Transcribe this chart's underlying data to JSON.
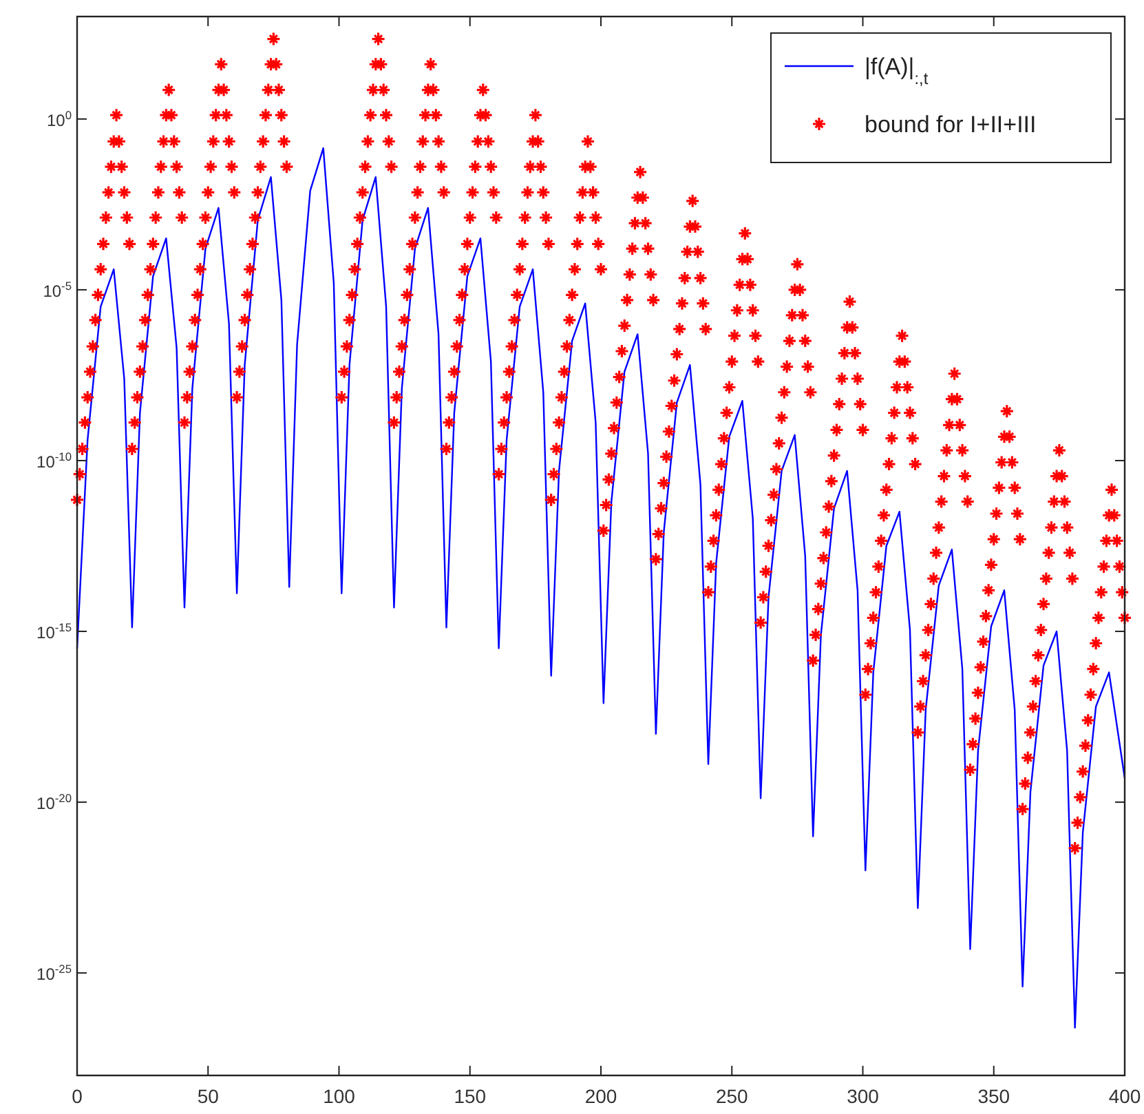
{
  "chart_data": {
    "type": "line",
    "log": "y",
    "legend": "top right",
    "xlim": [
      0,
      400
    ],
    "ylim": [
      1e-28,
      1000
    ],
    "xticks": [
      0,
      50,
      100,
      150,
      200,
      250,
      300,
      350,
      400
    ],
    "yticks": [
      {
        "value": 1,
        "label": "10$^{0}$"
      },
      {
        "value": 1e-05,
        "label": "10$^{-5}$"
      },
      {
        "value": 1e-10,
        "label": "10$^{-10}$"
      },
      {
        "value": 1e-15,
        "label": "10$^{-15}$"
      },
      {
        "value": 1e-20,
        "label": "10$^{-20}$"
      },
      {
        "value": 1e-25,
        "label": "10$^{-25}$"
      }
    ],
    "series": [
      {
        "name": "|f(A)|$_{:,t}$",
        "marker": "none",
        "color": "#0000ff",
        "x": [
          0,
          4,
          9,
          14,
          18,
          21,
          24,
          29,
          34,
          38,
          41,
          44,
          49,
          54,
          58,
          61,
          64,
          69,
          74,
          78,
          81,
          84,
          89,
          94,
          98,
          101,
          104,
          109,
          114,
          118,
          121,
          124,
          129,
          134,
          138,
          141,
          144,
          149,
          154,
          158,
          161,
          164,
          169,
          174,
          178,
          181,
          184,
          189,
          194,
          198,
          201,
          204,
          209,
          214,
          218,
          221,
          224,
          229,
          234,
          238,
          241,
          244,
          249,
          254,
          258,
          261,
          264,
          269,
          274,
          278,
          281,
          284,
          289,
          294,
          298,
          301,
          304,
          309,
          314,
          318,
          321,
          324,
          329,
          334,
          338,
          341,
          344,
          349,
          354,
          358,
          361,
          364,
          369,
          374,
          378,
          381,
          384,
          389,
          394,
          400
        ],
        "values": [
          3.2e-16,
          4e-10,
          3.2e-06,
          4e-05,
          2.5e-08,
          1.3e-15,
          2.5e-09,
          2.5e-05,
          0.00032,
          2e-07,
          5e-15,
          1.3e-08,
          0.00016,
          0.0025,
          1e-06,
          1.3e-14,
          6.3e-08,
          0.0011,
          0.02,
          5e-06,
          2e-14,
          2.5e-07,
          0.0079,
          0.14,
          1.6e-05,
          1.3e-14,
          6.3e-08,
          0.0011,
          0.02,
          3.2e-06,
          5e-15,
          1.3e-08,
          0.00016,
          0.0025,
          5e-07,
          1.3e-15,
          2.5e-09,
          2.5e-05,
          0.00032,
          7.9e-08,
          3.2e-16,
          4e-10,
          3.2e-06,
          4e-05,
          1e-08,
          5e-17,
          5e-11,
          3.2e-07,
          4e-06,
          1.3e-09,
          7.9e-18,
          6.3e-12,
          4e-08,
          5e-07,
          1.6e-10,
          1e-18,
          7.9e-13,
          5e-09,
          6.3e-08,
          2e-11,
          1.3e-19,
          1e-13,
          5e-10,
          5.6e-09,
          2e-12,
          1.3e-20,
          1e-14,
          5e-11,
          5.6e-10,
          1.6e-13,
          1e-21,
          7.9e-16,
          4e-12,
          5e-11,
          1.6e-14,
          1e-22,
          6.3e-17,
          3.2e-13,
          3.2e-12,
          1.1e-15,
          7.9e-24,
          5e-18,
          2.2e-14,
          2.5e-13,
          7.9e-17,
          5e-25,
          3.2e-19,
          1.4e-15,
          1.6e-14,
          5e-18,
          4e-26,
          2e-20,
          1e-16,
          1e-15,
          3.2e-19,
          2.5e-27,
          1.3e-21,
          6.3e-18,
          6.3e-17,
          5e-20
        ]
      },
      {
        "name": "bound for I+II+III",
        "type": "scatter",
        "marker": "cross",
        "color": "#ff0000",
        "x": [
          0,
          1,
          2,
          3,
          4,
          5,
          6,
          7,
          8,
          9,
          10,
          11,
          12,
          13,
          14,
          15,
          16,
          17,
          18,
          19,
          20,
          21,
          22,
          23,
          24,
          25,
          26,
          27,
          28,
          29,
          30,
          31,
          32,
          33,
          34,
          35,
          36,
          37,
          38,
          39,
          40,
          41,
          42,
          43,
          44,
          45,
          46,
          47,
          48,
          49,
          50,
          51,
          52,
          53,
          54,
          55,
          56,
          57,
          58,
          59,
          60,
          61,
          62,
          63,
          64,
          65,
          66,
          67,
          68,
          69,
          70,
          71,
          72,
          73,
          74,
          75,
          76,
          77,
          78,
          79,
          80,
          101,
          102,
          103,
          104,
          105,
          106,
          107,
          108,
          109,
          110,
          111,
          112,
          113,
          114,
          115,
          116,
          117,
          118,
          119,
          120,
          121,
          122,
          123,
          124,
          125,
          126,
          127,
          128,
          129,
          130,
          131,
          132,
          133,
          134,
          135,
          136,
          137,
          138,
          139,
          140,
          141,
          142,
          143,
          144,
          145,
          146,
          147,
          148,
          149,
          150,
          151,
          152,
          153,
          154,
          155,
          156,
          157,
          158,
          159,
          160,
          161,
          162,
          163,
          164,
          165,
          166,
          167,
          168,
          169,
          170,
          171,
          172,
          173,
          174,
          175,
          176,
          177,
          178,
          179,
          180,
          181,
          182,
          183,
          184,
          185,
          186,
          187,
          188,
          189,
          190,
          191,
          192,
          193,
          194,
          195,
          196,
          197,
          198,
          199,
          200,
          201,
          202,
          203,
          204,
          205,
          206,
          207,
          208,
          209,
          210,
          211,
          212,
          213,
          214,
          215,
          216,
          217,
          218,
          219,
          220,
          221,
          222,
          223,
          224,
          225,
          226,
          227,
          228,
          229,
          230,
          231,
          232,
          233,
          234,
          235,
          236,
          237,
          238,
          239,
          240,
          241,
          242,
          243,
          244,
          245,
          246,
          247,
          248,
          249,
          250,
          251,
          252,
          253,
          254,
          255,
          256,
          257,
          258,
          259,
          260,
          261,
          262,
          263,
          264,
          265,
          266,
          267,
          268,
          269,
          270,
          271,
          272,
          273,
          274,
          275,
          276,
          277,
          278,
          279,
          280,
          281,
          282,
          283,
          284,
          285,
          286,
          287,
          288,
          289,
          290,
          291,
          292,
          293,
          294,
          295,
          296,
          297,
          298,
          299,
          300,
          301,
          302,
          303,
          304,
          305,
          306,
          307,
          308,
          309,
          310,
          311,
          312,
          313,
          314,
          315,
          316,
          317,
          318,
          319,
          320,
          321,
          322,
          323,
          324,
          325,
          326,
          327,
          328,
          329,
          330,
          331,
          332,
          333,
          334,
          335,
          336,
          337,
          338,
          339,
          340,
          341,
          342,
          343,
          344,
          345,
          346,
          347,
          348,
          349,
          350,
          351,
          352,
          353,
          354,
          355,
          356,
          357,
          358,
          359,
          360,
          361,
          362,
          363,
          364,
          365,
          366,
          367,
          368,
          369,
          370,
          371,
          372,
          373,
          374,
          375,
          376,
          377,
          378,
          379,
          380,
          381,
          382,
          383,
          384,
          385,
          386,
          387,
          388,
          389,
          390,
          391,
          392,
          393,
          394,
          395,
          396,
          397,
          398,
          399,
          400
        ],
        "values": [
          7.1e-12,
          4e-11,
          2.2e-10,
          1.3e-09,
          7.1e-09,
          4e-08,
          2.2e-07,
          1.3e-06,
          7.1e-06,
          4e-05,
          0.00022,
          0.0013,
          0.0071,
          0.04,
          0.22,
          1.3,
          0.22,
          0.04,
          0.0071,
          0.0013,
          0.00022,
          2.2e-10,
          1.3e-09,
          7.1e-09,
          4e-08,
          2.2e-07,
          1.3e-06,
          7.1e-06,
          4e-05,
          0.00022,
          0.0013,
          0.0071,
          0.04,
          0.22,
          1.3,
          7.1,
          1.3,
          0.22,
          0.04,
          0.0071,
          0.0013,
          1.3e-09,
          7.1e-09,
          4e-08,
          2.2e-07,
          1.3e-06,
          7.1e-06,
          4e-05,
          0.00022,
          0.0013,
          0.0071,
          0.04,
          0.22,
          1.3,
          7.1,
          40,
          7.1,
          1.3,
          0.22,
          0.04,
          0.0071,
          7.1e-09,
          4e-08,
          2.2e-07,
          1.3e-06,
          7.1e-06,
          4e-05,
          0.00022,
          0.0013,
          0.0071,
          0.04,
          0.22,
          1.3,
          7.1,
          40,
          220,
          40,
          7.1,
          1.3,
          0.22,
          0.04,
          7.1e-09,
          4e-08,
          2.2e-07,
          1.3e-06,
          7.1e-06,
          4e-05,
          0.00022,
          0.0013,
          0.0071,
          0.04,
          0.22,
          1.3,
          7.1,
          40,
          220,
          40,
          7.1,
          1.3,
          0.22,
          0.04,
          1.3e-09,
          7.1e-09,
          4e-08,
          2.2e-07,
          1.3e-06,
          7.1e-06,
          4e-05,
          0.00022,
          0.0013,
          0.0071,
          0.04,
          0.22,
          1.3,
          7.1,
          40,
          7.1,
          1.3,
          0.22,
          0.04,
          0.0071,
          2.2e-10,
          1.3e-09,
          7.1e-09,
          4e-08,
          2.2e-07,
          1.3e-06,
          7.1e-06,
          4e-05,
          0.00022,
          0.0013,
          0.0071,
          0.04,
          0.22,
          1.3,
          7.1,
          1.3,
          0.22,
          0.04,
          0.0071,
          0.0013,
          4e-11,
          2.2e-10,
          1.3e-09,
          7.1e-09,
          4e-08,
          2.2e-07,
          1.3e-06,
          7.1e-06,
          4e-05,
          0.00022,
          0.0013,
          0.0071,
          0.04,
          0.22,
          1.3,
          0.22,
          0.04,
          0.0071,
          0.0013,
          0.00022,
          7.1e-12,
          4e-11,
          2.2e-10,
          1.3e-09,
          7.1e-09,
          4e-08,
          2.2e-07,
          1.3e-06,
          7.1e-06,
          4e-05,
          0.00022,
          0.0013,
          0.0071,
          0.04,
          0.22,
          0.04,
          0.0071,
          0.0013,
          0.00022,
          4e-05,
          8.9e-13,
          5e-12,
          2.8e-11,
          1.6e-10,
          8.9e-10,
          5e-09,
          2.8e-08,
          1.6e-07,
          8.9e-07,
          5e-06,
          2.8e-05,
          0.00016,
          0.00089,
          0.005,
          0.028,
          0.005,
          0.00089,
          0.00016,
          2.8e-05,
          5e-06,
          1.3e-13,
          7.1e-13,
          4e-12,
          2.2e-11,
          1.3e-10,
          7.1e-10,
          4e-09,
          2.2e-08,
          1.3e-07,
          7.1e-07,
          4e-06,
          2.2e-05,
          0.00013,
          0.00071,
          0.004,
          0.00071,
          0.00013,
          2.2e-05,
          4e-06,
          7.1e-07,
          1.4e-14,
          7.9e-14,
          4.5e-13,
          2.5e-12,
          1.4e-11,
          7.9e-11,
          4.5e-10,
          2.5e-09,
          1.4e-08,
          7.9e-08,
          4.5e-07,
          2.5e-06,
          1.4e-05,
          7.9e-05,
          0.00045,
          7.9e-05,
          1.4e-05,
          2.5e-06,
          4.5e-07,
          7.9e-08,
          1.8e-15,
          1e-14,
          5.6e-14,
          3.2e-13,
          1.8e-12,
          1e-11,
          5.6e-11,
          3.2e-10,
          1.8e-09,
          1e-08,
          5.6e-08,
          3.2e-07,
          1.8e-06,
          1e-05,
          5.6e-05,
          1e-05,
          1.8e-06,
          3.2e-07,
          5.6e-08,
          1e-08,
          1.4e-16,
          7.9e-16,
          4.5e-15,
          2.5e-14,
          1.4e-13,
          7.9e-13,
          4.5e-12,
          2.5e-11,
          1.4e-10,
          7.9e-10,
          4.5e-09,
          2.5e-08,
          1.4e-07,
          7.9e-07,
          4.5e-06,
          7.9e-07,
          1.4e-07,
          2.5e-08,
          4.5e-09,
          7.9e-10,
          1.4e-17,
          7.9e-17,
          4.5e-16,
          2.5e-15,
          1.4e-14,
          7.9e-14,
          4.5e-13,
          2.5e-12,
          1.4e-11,
          7.9e-11,
          4.5e-10,
          2.5e-09,
          1.4e-08,
          7.9e-08,
          4.5e-07,
          7.9e-08,
          1.4e-08,
          2.5e-09,
          4.5e-10,
          7.9e-11,
          1.1e-18,
          6.3e-18,
          3.5e-17,
          2e-16,
          1.1e-15,
          6.3e-15,
          3.5e-14,
          2e-13,
          1.1e-12,
          6.3e-12,
          3.5e-11,
          2e-10,
          1.1e-09,
          6.3e-09,
          3.5e-08,
          6.3e-09,
          1.1e-09,
          2e-10,
          3.5e-11,
          6.3e-12,
          8.9e-20,
          5e-19,
          2.8e-18,
          1.6e-17,
          8.9e-17,
          5e-16,
          2.8e-15,
          1.6e-14,
          8.9e-14,
          5e-13,
          2.8e-12,
          1.6e-11,
          8.9e-11,
          5e-10,
          2.8e-09,
          5e-10,
          8.9e-11,
          1.6e-11,
          2.8e-12,
          5e-13,
          6.3e-21,
          3.5e-20,
          2e-19,
          1.1e-18,
          6.3e-18,
          3.5e-17,
          2e-16,
          1.1e-15,
          6.3e-15,
          3.5e-14,
          2e-13,
          1.1e-12,
          6.3e-12,
          3.5e-11,
          2e-10,
          3.5e-11,
          6.3e-12,
          1.1e-12,
          2e-13,
          3.5e-14,
          4.5e-22,
          2.5e-21,
          1.4e-20,
          7.9e-20,
          4.5e-19,
          2.5e-18,
          1.4e-17,
          7.9e-17,
          4.5e-16,
          2.5e-15,
          1.4e-14,
          7.9e-14,
          4.5e-13,
          2.5e-12,
          1.4e-11,
          2.5e-12,
          4.5e-13,
          7.9e-14,
          1.4e-14,
          2.5e-15
        ]
      }
    ]
  }
}
